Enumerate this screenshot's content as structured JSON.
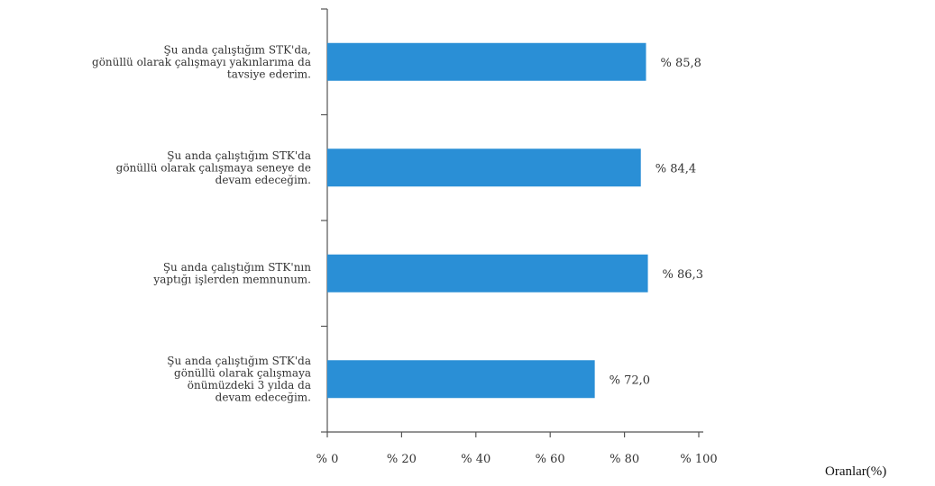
{
  "chart_data": {
    "type": "bar",
    "orientation": "horizontal",
    "categories": [
      [
        "Şu anda çalıştığım STK'da,",
        "gönüllü olarak çalışmayı yakınlarıma da",
        "tavsiye ederim."
      ],
      [
        "Şu anda çalıştığım STK'da",
        "gönüllü olarak çalışmaya seneye de",
        "devam edeceğim."
      ],
      [
        "Şu anda çalıştığım STK'nın",
        "yaptığı işlerden memnunum."
      ],
      [
        "Şu anda çalıştığım STK'da",
        "gönüllü olarak çalışmaya",
        "önümüzdeki 3 yılda da",
        "devam edeceğim."
      ]
    ],
    "values": [
      85.8,
      84.4,
      86.3,
      72.0
    ],
    "value_labels": [
      "% 85,8",
      "% 84,4",
      "% 86,3",
      "% 72,0"
    ],
    "xlim": [
      0,
      100
    ],
    "xticks": [
      0,
      20,
      40,
      60,
      80,
      100
    ],
    "xtick_labels": [
      "% 0",
      "% 20",
      "% 40",
      "% 60",
      "% 80",
      "% 100"
    ],
    "xlabel": "Oranlar(%)",
    "grid": false,
    "bar_color": "#2A8FD6"
  }
}
